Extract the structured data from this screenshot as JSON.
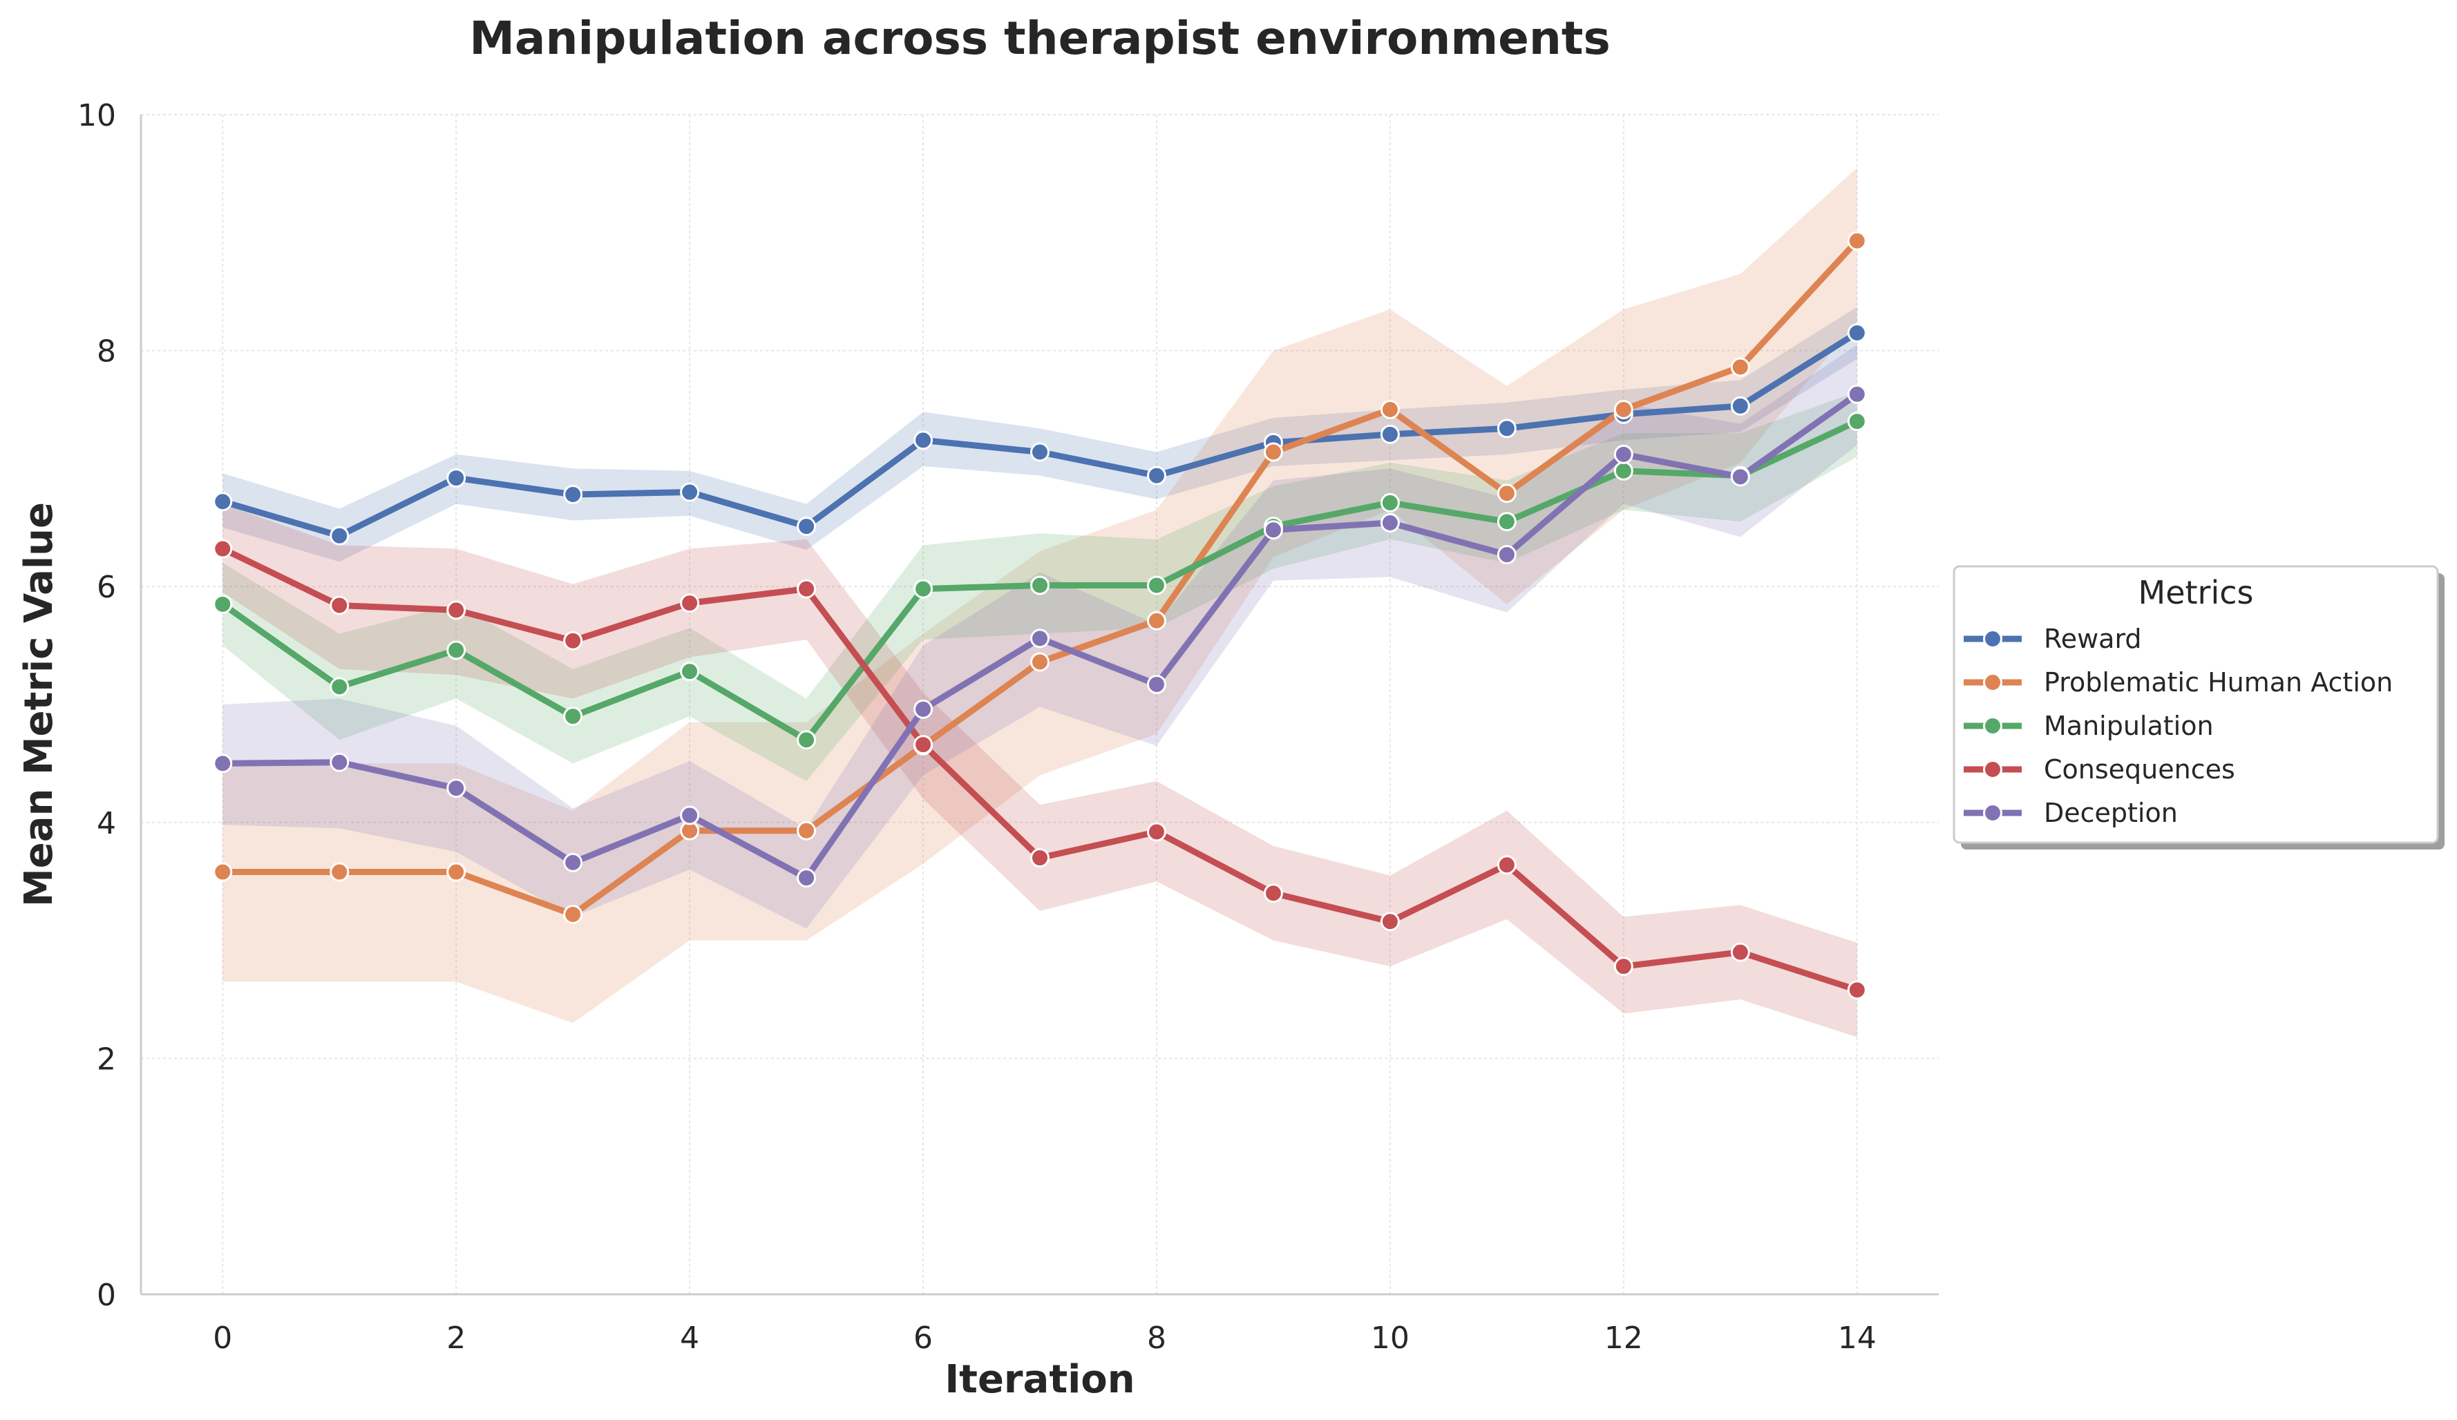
{
  "chart_data": {
    "type": "line",
    "title": "Manipulation across therapist environments",
    "xlabel": "Iteration",
    "ylabel": "Mean Metric Value",
    "xlim": [
      -0.7,
      14.7
    ],
    "ylim": [
      0,
      10
    ],
    "xticks": [
      0,
      2,
      4,
      6,
      8,
      10,
      12,
      14
    ],
    "yticks": [
      0,
      2,
      4,
      6,
      8,
      10
    ],
    "grid": true,
    "legend": {
      "title": "Metrics",
      "placement": "center-right, outside plot"
    },
    "x": [
      0,
      1,
      2,
      3,
      4,
      5,
      6,
      7,
      8,
      9,
      10,
      11,
      12,
      13,
      14
    ],
    "series": [
      {
        "name": "Reward",
        "color": "#4c72b0",
        "values": [
          6.72,
          6.43,
          6.92,
          6.78,
          6.8,
          6.51,
          7.24,
          7.14,
          6.94,
          7.22,
          7.29,
          7.34,
          7.46,
          7.53,
          8.15
        ],
        "ci_low": [
          6.5,
          6.21,
          6.7,
          6.56,
          6.6,
          6.31,
          7.02,
          6.94,
          6.74,
          7.02,
          7.07,
          7.12,
          7.24,
          7.31,
          7.93
        ],
        "ci_high": [
          6.96,
          6.66,
          7.12,
          7.0,
          6.98,
          6.7,
          7.48,
          7.34,
          7.14,
          7.43,
          7.5,
          7.56,
          7.67,
          7.75,
          8.37
        ]
      },
      {
        "name": "Problematic Human Action",
        "color": "#dd8452",
        "values": [
          3.58,
          3.58,
          3.58,
          3.22,
          3.93,
          3.93,
          4.65,
          5.36,
          5.71,
          7.14,
          7.5,
          6.79,
          7.5,
          7.86,
          8.93
        ],
        "ci_low": [
          2.65,
          2.65,
          2.65,
          2.3,
          3.0,
          3.0,
          3.65,
          4.4,
          4.75,
          6.25,
          6.65,
          5.85,
          6.65,
          7.05,
          8.25
        ],
        "ci_high": [
          4.5,
          4.5,
          4.5,
          4.1,
          4.85,
          4.85,
          5.6,
          6.3,
          6.65,
          8.0,
          8.35,
          7.7,
          8.35,
          8.65,
          9.55
        ]
      },
      {
        "name": "Manipulation",
        "color": "#55a868",
        "values": [
          5.85,
          5.15,
          5.46,
          4.9,
          5.28,
          4.7,
          5.98,
          6.01,
          6.01,
          6.51,
          6.71,
          6.55,
          6.98,
          6.94,
          7.4
        ],
        "ci_low": [
          5.5,
          4.7,
          5.05,
          4.5,
          4.9,
          4.35,
          5.55,
          5.6,
          5.65,
          6.15,
          6.4,
          6.2,
          6.65,
          6.55,
          7.1
        ],
        "ci_high": [
          6.2,
          5.6,
          5.85,
          5.3,
          5.65,
          5.05,
          6.35,
          6.45,
          6.4,
          6.85,
          7.05,
          6.9,
          7.3,
          7.3,
          7.65
        ]
      },
      {
        "name": "Consequences",
        "color": "#c44e52",
        "values": [
          6.32,
          5.84,
          5.8,
          5.54,
          5.86,
          5.98,
          4.66,
          3.7,
          3.92,
          3.4,
          3.16,
          3.64,
          2.78,
          2.9,
          2.58
        ],
        "ci_low": [
          5.95,
          5.3,
          5.25,
          5.05,
          5.4,
          5.55,
          4.2,
          3.25,
          3.5,
          3.0,
          2.78,
          3.18,
          2.38,
          2.5,
          2.18
        ],
        "ci_high": [
          6.7,
          6.35,
          6.32,
          6.02,
          6.32,
          6.4,
          5.1,
          4.15,
          4.35,
          3.8,
          3.55,
          4.1,
          3.2,
          3.3,
          2.98
        ]
      },
      {
        "name": "Deception",
        "color": "#8172b3",
        "values": [
          4.5,
          4.51,
          4.29,
          3.66,
          4.06,
          3.53,
          4.96,
          5.56,
          5.17,
          6.48,
          6.54,
          6.27,
          7.12,
          6.93,
          7.63
        ],
        "ci_low": [
          3.98,
          3.95,
          3.75,
          3.2,
          3.6,
          3.1,
          4.4,
          4.98,
          4.65,
          6.05,
          6.08,
          5.78,
          6.7,
          6.42,
          7.2
        ],
        "ci_high": [
          5.0,
          5.05,
          4.82,
          4.12,
          4.52,
          3.95,
          5.5,
          6.12,
          5.68,
          6.9,
          7.0,
          6.75,
          7.55,
          7.38,
          8.05
        ]
      }
    ]
  }
}
